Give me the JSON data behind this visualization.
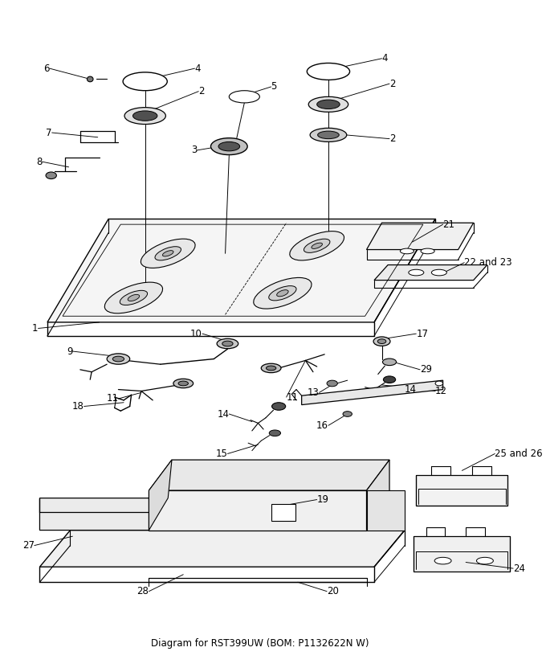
{
  "title": "Diagram for RST399UW (BOM: P1132622N W)",
  "bg_color": "#ffffff",
  "line_color": "#000000",
  "label_color": "#000000",
  "title_fontsize": 8,
  "label_fontsize": 8,
  "figsize": [
    6.8,
    8.36
  ],
  "dpi": 100
}
